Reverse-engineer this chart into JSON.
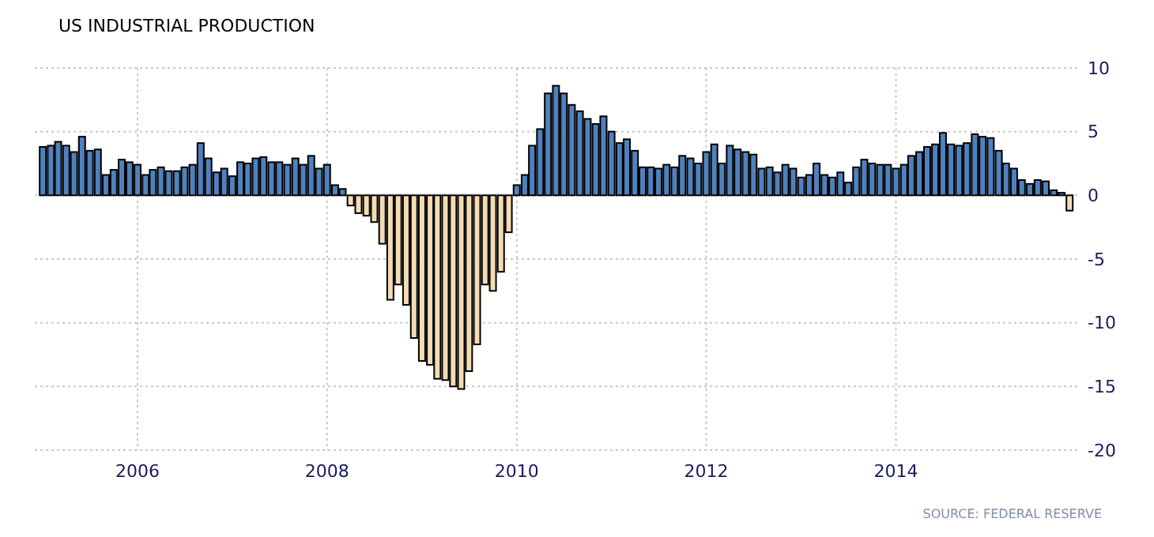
{
  "chart_data": {
    "type": "bar",
    "title": "US INDUSTRIAL PRODUCTION",
    "annotations": [
      "SOURCE: FEDERAL RESERVE"
    ],
    "x": [
      "2005-01",
      "2005-02",
      "2005-03",
      "2005-04",
      "2005-05",
      "2005-06",
      "2005-07",
      "2005-08",
      "2005-09",
      "2005-10",
      "2005-11",
      "2005-12",
      "2006-01",
      "2006-02",
      "2006-03",
      "2006-04",
      "2006-05",
      "2006-06",
      "2006-07",
      "2006-08",
      "2006-09",
      "2006-10",
      "2006-11",
      "2006-12",
      "2007-01",
      "2007-02",
      "2007-03",
      "2007-04",
      "2007-05",
      "2007-06",
      "2007-07",
      "2007-08",
      "2007-09",
      "2007-10",
      "2007-11",
      "2007-12",
      "2008-01",
      "2008-02",
      "2008-03",
      "2008-04",
      "2008-05",
      "2008-06",
      "2008-07",
      "2008-08",
      "2008-09",
      "2008-10",
      "2008-11",
      "2008-12",
      "2009-01",
      "2009-02",
      "2009-03",
      "2009-04",
      "2009-05",
      "2009-06",
      "2009-07",
      "2009-08",
      "2009-09",
      "2009-10",
      "2009-11",
      "2009-12",
      "2010-01",
      "2010-02",
      "2010-03",
      "2010-04",
      "2010-05",
      "2010-06",
      "2010-07",
      "2010-08",
      "2010-09",
      "2010-10",
      "2010-11",
      "2010-12",
      "2011-01",
      "2011-02",
      "2011-03",
      "2011-04",
      "2011-05",
      "2011-06",
      "2011-07",
      "2011-08",
      "2011-09",
      "2011-10",
      "2011-11",
      "2011-12",
      "2012-01",
      "2012-02",
      "2012-03",
      "2012-04",
      "2012-05",
      "2012-06",
      "2012-07",
      "2012-08",
      "2012-09",
      "2012-10",
      "2012-11",
      "2012-12",
      "2013-01",
      "2013-02",
      "2013-03",
      "2013-04",
      "2013-05",
      "2013-06",
      "2013-07",
      "2013-08",
      "2013-09",
      "2013-10",
      "2013-11",
      "2013-12",
      "2014-01",
      "2014-02",
      "2014-03",
      "2014-04",
      "2014-05",
      "2014-06",
      "2014-07",
      "2014-08",
      "2014-09",
      "2014-10",
      "2014-11",
      "2014-12",
      "2015-01",
      "2015-02",
      "2015-03",
      "2015-04",
      "2015-05",
      "2015-06",
      "2015-07",
      "2015-08",
      "2015-09",
      "2015-10",
      "2015-11"
    ],
    "values": [
      3.8,
      3.9,
      4.2,
      3.9,
      3.4,
      4.6,
      3.5,
      3.6,
      1.6,
      2.0,
      2.8,
      2.6,
      2.4,
      1.6,
      2.0,
      2.2,
      1.9,
      1.9,
      2.2,
      2.4,
      4.1,
      2.9,
      1.8,
      2.1,
      1.5,
      2.6,
      2.5,
      2.9,
      3.0,
      2.6,
      2.6,
      2.4,
      2.9,
      2.4,
      3.1,
      2.1,
      2.4,
      0.8,
      0.5,
      -0.8,
      -1.4,
      -1.6,
      -2.1,
      -3.8,
      -8.2,
      -7.0,
      -8.6,
      -11.2,
      -13.0,
      -13.3,
      -14.4,
      -14.5,
      -15.0,
      -15.2,
      -13.8,
      -11.7,
      -7.0,
      -7.5,
      -6.0,
      -2.9,
      0.8,
      1.6,
      3.9,
      5.2,
      8.0,
      8.6,
      8.0,
      7.1,
      6.6,
      6.0,
      5.6,
      6.2,
      5.0,
      4.1,
      4.4,
      3.5,
      2.2,
      2.2,
      2.1,
      2.4,
      2.2,
      3.1,
      2.9,
      2.5,
      3.4,
      4.0,
      2.5,
      3.9,
      3.6,
      3.4,
      3.2,
      2.1,
      2.2,
      1.8,
      2.4,
      2.1,
      1.4,
      1.6,
      2.5,
      1.6,
      1.4,
      1.8,
      1.0,
      2.2,
      2.8,
      2.5,
      2.4,
      2.4,
      2.1,
      2.4,
      3.1,
      3.4,
      3.8,
      4.0,
      4.9,
      4.0,
      3.9,
      4.1,
      4.8,
      4.6,
      4.5,
      3.5,
      2.5,
      2.1,
      1.2,
      0.9,
      1.2,
      1.1,
      0.4,
      0.2,
      -1.2
    ],
    "colors": [
      "#4f81bd",
      "#4f81bd",
      "#4f81bd",
      "#4f81bd",
      "#4f81bd",
      "#4f81bd",
      "#4f81bd",
      "#4f81bd",
      "#4f81bd",
      "#4f81bd",
      "#4f81bd",
      "#4f81bd",
      "#4f81bd",
      "#4f81bd",
      "#4f81bd",
      "#4f81bd",
      "#4f81bd",
      "#4f81bd",
      "#4f81bd",
      "#4f81bd",
      "#4f81bd",
      "#4f81bd",
      "#4f81bd",
      "#4f81bd",
      "#4f81bd",
      "#4f81bd",
      "#4f81bd",
      "#4f81bd",
      "#4f81bd",
      "#4f81bd",
      "#4f81bd",
      "#4f81bd",
      "#4f81bd",
      "#4f81bd",
      "#4f81bd",
      "#4f81bd",
      "#4f81bd",
      "#4f81bd",
      "#4f81bd",
      "#f3dcb4",
      "#f3dcb4",
      "#f3dcb4",
      "#f3dcb4",
      "#f3dcb4",
      "#f3dcb4",
      "#f3dcb4",
      "#f3dcb4",
      "#f3dcb4",
      "#f3dcb4",
      "#f3dcb4",
      "#f3dcb4",
      "#f3dcb4",
      "#f3dcb4",
      "#f3dcb4",
      "#f3dcb4",
      "#f3dcb4",
      "#f3dcb4",
      "#f3dcb4",
      "#f3dcb4",
      "#f3dcb4",
      "#4f81bd",
      "#4f81bd",
      "#4f81bd",
      "#4f81bd",
      "#4f81bd",
      "#4f81bd",
      "#4f81bd",
      "#4f81bd",
      "#4f81bd",
      "#4f81bd",
      "#4f81bd",
      "#4f81bd",
      "#4f81bd",
      "#4f81bd",
      "#4f81bd",
      "#4f81bd",
      "#4f81bd",
      "#4f81bd",
      "#4f81bd",
      "#4f81bd",
      "#4f81bd",
      "#4f81bd",
      "#4f81bd",
      "#4f81bd",
      "#4f81bd",
      "#4f81bd",
      "#4f81bd",
      "#4f81bd",
      "#4f81bd",
      "#4f81bd",
      "#4f81bd",
      "#4f81bd",
      "#4f81bd",
      "#4f81bd",
      "#4f81bd",
      "#4f81bd",
      "#4f81bd",
      "#4f81bd",
      "#4f81bd",
      "#4f81bd",
      "#4f81bd",
      "#4f81bd",
      "#4f81bd",
      "#4f81bd",
      "#4f81bd",
      "#4f81bd",
      "#4f81bd",
      "#4f81bd",
      "#4f81bd",
      "#4f81bd",
      "#4f81bd",
      "#4f81bd",
      "#4f81bd",
      "#4f81bd",
      "#4f81bd",
      "#4f81bd",
      "#4f81bd",
      "#4f81bd",
      "#4f81bd",
      "#4f81bd",
      "#4f81bd",
      "#4f81bd",
      "#4f81bd",
      "#4f81bd",
      "#4f81bd",
      "#4f81bd",
      "#4f81bd",
      "#4f81bd",
      "#4f81bd",
      "#4f81bd",
      "#f3dcb4"
    ],
    "xlim": [
      "2004-12",
      "2015-12-10"
    ],
    "xticks": [
      {
        "value": "2006-01",
        "label": "2006"
      },
      {
        "value": "2008-01",
        "label": "2008"
      },
      {
        "value": "2010-01",
        "label": "2010"
      },
      {
        "value": "2012-01",
        "label": "2012"
      },
      {
        "value": "2014-01",
        "label": "2014"
      }
    ],
    "ylim": [
      -20,
      10
    ],
    "yticks": [
      10,
      5,
      0,
      -5,
      -10,
      -15,
      -20
    ],
    "grid": true
  }
}
